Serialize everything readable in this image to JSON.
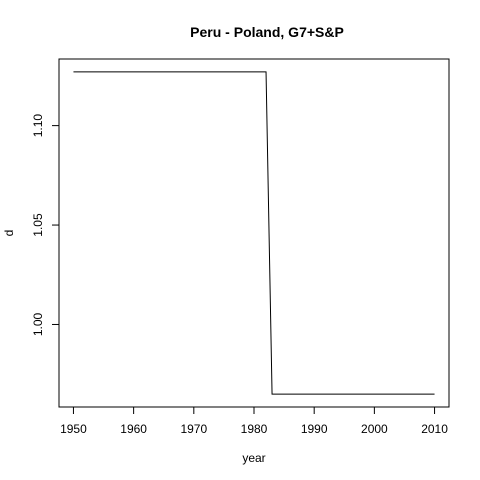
{
  "chart_data": {
    "type": "line",
    "title": "Peru - Poland, G7+S&P",
    "xlabel": "year",
    "ylabel": "d",
    "xlim": [
      1947.6,
      2012.4
    ],
    "ylim": [
      0.9585,
      1.1335
    ],
    "x_ticks": [
      1950,
      1960,
      1970,
      1980,
      1990,
      2000,
      2010
    ],
    "y_ticks": [
      1.0,
      1.05,
      1.1
    ],
    "y_tick_labels": [
      "1.00",
      "1.05",
      "1.10"
    ],
    "grid": false,
    "legend": "none",
    "series": [
      {
        "x": [
          1950,
          1982,
          1983,
          2010
        ],
        "y": [
          1.127,
          1.127,
          0.965,
          0.965
        ]
      }
    ]
  }
}
